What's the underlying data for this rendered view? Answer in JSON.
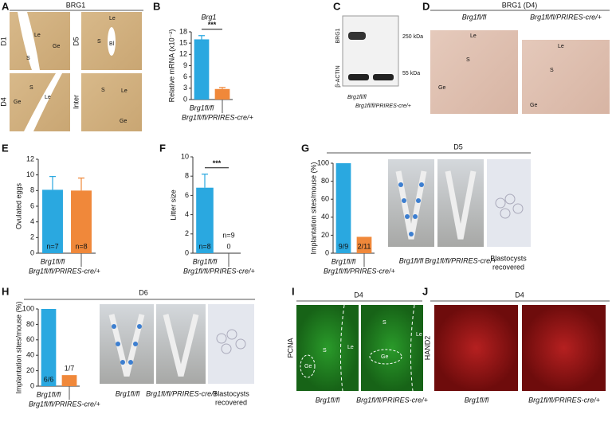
{
  "chart_data": [
    {
      "type": "bar",
      "title": "Brg1",
      "ylabel": "Relative mRNA (x10⁻²)",
      "categories": [
        "Brg1fl/fl",
        "Brg1fl/fl/PRIRES-cre/+"
      ],
      "values": [
        16,
        2.8
      ],
      "errors": [
        1,
        0.4
      ],
      "colors": [
        "#2aa8e0",
        "#f0883a"
      ],
      "ylim": [
        0,
        18
      ],
      "yticks": [
        0,
        3,
        6,
        9,
        12,
        15,
        18
      ],
      "significance": "***"
    },
    {
      "type": "bar",
      "ylabel": "Ovulated eggs",
      "categories": [
        "Brg1fl/fl",
        "Brg1fl/fl/PRIRES-cre/+"
      ],
      "values": [
        8.1,
        8.0
      ],
      "errors": [
        1.7,
        1.6
      ],
      "colors": [
        "#2aa8e0",
        "#f0883a"
      ],
      "ylim": [
        0,
        12
      ],
      "yticks": [
        0,
        2,
        4,
        6,
        8,
        10,
        12
      ],
      "n_labels": [
        "n=7",
        "n=8"
      ]
    },
    {
      "type": "bar",
      "ylabel": "Litter size",
      "categories": [
        "Brg1fl/fl",
        "Brg1fl/fl/PRIRES-cre/+"
      ],
      "values": [
        6.8,
        0
      ],
      "errors": [
        1.4,
        0
      ],
      "colors": [
        "#2aa8e0",
        "#f0883a"
      ],
      "ylim": [
        0,
        10
      ],
      "yticks": [
        0,
        2,
        4,
        6,
        8,
        10
      ],
      "n_labels": [
        "n=8",
        "n=9"
      ],
      "significance": "***",
      "zero_label_color": "#e8413c"
    },
    {
      "type": "bar",
      "title": "D5",
      "ylabel": "Implantation sites/mouse (%)",
      "categories": [
        "Brg1fl/fl",
        "Brg1fl/fl/PRIRES-cre/+"
      ],
      "values": [
        100,
        18.2
      ],
      "colors": [
        "#2aa8e0",
        "#f0883a"
      ],
      "ylim": [
        0,
        100
      ],
      "yticks": [
        0,
        20,
        40,
        60,
        80,
        100
      ],
      "n_labels": [
        "9/9",
        "2/11"
      ]
    },
    {
      "type": "bar",
      "title": "D6",
      "ylabel": "Implantation sites/mouse (%)",
      "categories": [
        "Brg1fl/fl",
        "Brg1fl/fl/PRIRES-cre/+"
      ],
      "values": [
        100,
        14.3
      ],
      "colors": [
        "#2aa8e0",
        "#f0883a"
      ],
      "ylim": [
        0,
        100
      ],
      "yticks": [
        0,
        20,
        40,
        60,
        80,
        100
      ],
      "n_labels": [
        "6/6",
        "1/7"
      ]
    }
  ],
  "figure": {
    "panel_labels": [
      "A",
      "B",
      "C",
      "D",
      "E",
      "F",
      "G",
      "H",
      "I",
      "J"
    ],
    "a": {
      "title": "BRG1",
      "rows": [
        "D1",
        "D5",
        "D4",
        "Inter"
      ],
      "labels": [
        "Le",
        "S",
        "Ge",
        "Le",
        "S",
        "Bl",
        "Ge",
        "S",
        "Le",
        "S",
        "Le",
        "Ge"
      ]
    },
    "c": {
      "rows": [
        "BRG1",
        "β-ACTIN"
      ],
      "sizes": [
        "250 kDa",
        "55 kDa"
      ],
      "lanes": [
        "Brg1fl/fl",
        "Brg1fl/fl/PRIRES-cre/+"
      ]
    },
    "d": {
      "title": "BRG1 (D4)",
      "columns": [
        "Brg1fl/fl",
        "Brg1fl/fl/PRIRES-cre/+"
      ],
      "labels": [
        "Le",
        "S",
        "Ge",
        "Le",
        "S",
        "Ge"
      ]
    },
    "g": {
      "columns": [
        "Brg1fl/fl",
        "Brg1fl/fl/PRIRES-cre/+"
      ],
      "blastocysts": [
        "Blastocysts",
        "recovered"
      ]
    },
    "h": {
      "columns": [
        "Brg1fl/fl",
        "Brg1fl/fl/PRIRES-cre/+"
      ],
      "blastocysts": [
        "Blastocysts",
        "recovered"
      ]
    },
    "i": {
      "title": "D4",
      "stain": "PCNA",
      "columns": [
        "Brg1fl/fl",
        "Brg1fl/fl/PRIRES-cre/+"
      ],
      "labels": [
        "Ge",
        "S",
        "Le",
        "S",
        "Le",
        "Ge"
      ]
    },
    "j": {
      "title": "D4",
      "stain": "HAND2",
      "columns": [
        "Brg1fl/fl",
        "Brg1fl/fl/PRIRES-cre/+"
      ]
    }
  }
}
